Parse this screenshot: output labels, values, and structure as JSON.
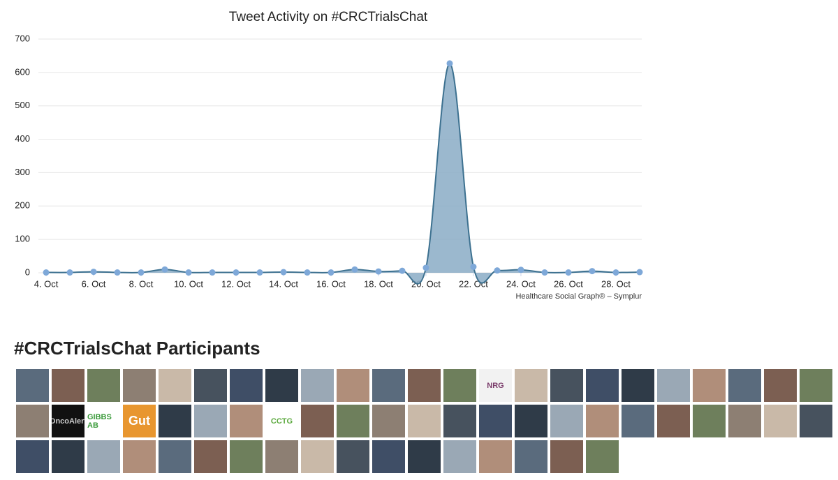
{
  "chart_data": {
    "type": "area",
    "title": "Tweet Activity on #CRCTrialsChat",
    "credits": "Healthcare Social Graph® – Symplur",
    "x": [
      4,
      5,
      6,
      7,
      8,
      9,
      10,
      11,
      12,
      13,
      14,
      15,
      16,
      17,
      18,
      19,
      20,
      21,
      22,
      23,
      24,
      25,
      26,
      27,
      28,
      29
    ],
    "values": [
      1,
      1,
      3,
      1,
      1,
      10,
      1,
      1,
      1,
      1,
      2,
      1,
      1,
      10,
      4,
      6,
      15,
      627,
      18,
      7,
      9,
      1,
      1,
      5,
      1,
      2
    ],
    "color": "#8aabc6",
    "line_color": "#3d7190",
    "marker_color": "#7ea8d8",
    "xlim": [
      2.94,
      29.09
    ],
    "xticks": [
      {
        "value": 4,
        "label": "4. Oct"
      },
      {
        "value": 6,
        "label": "6. Oct"
      },
      {
        "value": 8,
        "label": "8. Oct"
      },
      {
        "value": 10,
        "label": "10. Oct"
      },
      {
        "value": 12,
        "label": "12. Oct"
      },
      {
        "value": 14,
        "label": "14. Oct"
      },
      {
        "value": 16,
        "label": "16. Oct"
      },
      {
        "value": 18,
        "label": "18. Oct"
      },
      {
        "value": 20,
        "label": "20. Oct"
      },
      {
        "value": 22,
        "label": "22. Oct"
      },
      {
        "value": 24,
        "label": "24. Oct"
      },
      {
        "value": 26,
        "label": "26. Oct"
      },
      {
        "value": 28,
        "label": "28. Oct"
      }
    ],
    "ylim": [
      0,
      700
    ],
    "yticks": [
      0,
      100,
      200,
      300,
      400,
      500,
      600,
      700
    ],
    "grid": true
  },
  "participants": {
    "title": "#CRCTrialsChat Participants",
    "avatar_labels": [
      "NRG",
      "OncoAlert",
      "GIBBS AB",
      "Gut",
      "CCTG"
    ]
  }
}
